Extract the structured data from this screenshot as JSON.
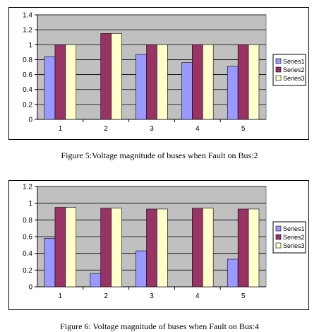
{
  "charts": [
    {
      "caption": "Figure 5:Voltage magnitude of buses when Fault on Bus:2",
      "chart_data": {
        "type": "bar",
        "categories": [
          "1",
          "2",
          "3",
          "4",
          "5"
        ],
        "series": [
          {
            "name": "Series1",
            "color": "#9999ff",
            "values": [
              0.84,
              0,
              0.87,
              0.76,
              0.71
            ]
          },
          {
            "name": "Series2",
            "color": "#993366",
            "values": [
              1.0,
              1.15,
              1.0,
              1.0,
              1.0
            ]
          },
          {
            "name": "Series3",
            "color": "#ffffcc",
            "values": [
              1.0,
              1.15,
              1.0,
              1.0,
              1.0
            ]
          }
        ],
        "ylim": [
          0,
          1.4
        ],
        "yticks": [
          0,
          0.2,
          0.4,
          0.6,
          0.8,
          1,
          1.2,
          1.4
        ],
        "ytick_labels": [
          "0",
          "0.2",
          "0.4",
          "0.6",
          "0.8",
          "1",
          "1.2",
          "1.4"
        ],
        "grid": true,
        "plot_background": "#c0c0c0",
        "legend_position": "right",
        "title": "",
        "xlabel": "",
        "ylabel": ""
      }
    },
    {
      "caption": "Figure 6: Voltage magnitude of buses when Fault on Bus:4",
      "chart_data": {
        "type": "bar",
        "categories": [
          "1",
          "2",
          "3",
          "4",
          "5"
        ],
        "series": [
          {
            "name": "Series1",
            "color": "#9999ff",
            "values": [
              0.58,
              0.16,
              0.43,
              0,
              0.33
            ]
          },
          {
            "name": "Series2",
            "color": "#993366",
            "values": [
              0.95,
              0.94,
              0.93,
              0.94,
              0.93
            ]
          },
          {
            "name": "Series3",
            "color": "#ffffcc",
            "values": [
              0.95,
              0.94,
              0.93,
              0.94,
              0.93
            ]
          }
        ],
        "ylim": [
          0,
          1.2
        ],
        "yticks": [
          0,
          0.2,
          0.4,
          0.6,
          0.8,
          1,
          1.2
        ],
        "ytick_labels": [
          "0",
          "0.2",
          "0.4",
          "0.6",
          "0.8",
          "1",
          "1.2"
        ],
        "grid": true,
        "plot_background": "#c0c0c0",
        "legend_position": "right",
        "title": "",
        "xlabel": "",
        "ylabel": ""
      }
    }
  ]
}
